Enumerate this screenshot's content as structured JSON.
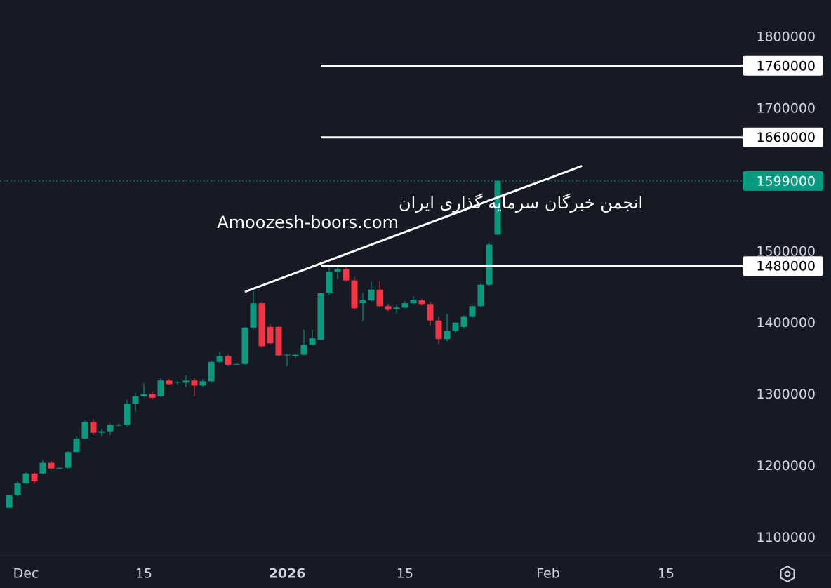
{
  "chart_data": {
    "type": "candlestick",
    "x": [
      "2025-11-29",
      "2025-11-30",
      "2025-12-01",
      "2025-12-02",
      "2025-12-03",
      "2025-12-04",
      "2025-12-05",
      "2025-12-06",
      "2025-12-07",
      "2025-12-08",
      "2025-12-09",
      "2025-12-10",
      "2025-12-11",
      "2025-12-12",
      "2025-12-13",
      "2025-12-14",
      "2025-12-15",
      "2025-12-16",
      "2025-12-17",
      "2025-12-18",
      "2025-12-19",
      "2025-12-20",
      "2025-12-21",
      "2025-12-22",
      "2025-12-23",
      "2025-12-24",
      "2025-12-25",
      "2025-12-26",
      "2025-12-27",
      "2025-12-28",
      "2025-12-29",
      "2025-12-30",
      "2025-12-31",
      "2026-01-01",
      "2026-01-02",
      "2026-01-03",
      "2026-01-04",
      "2026-01-05",
      "2026-01-06",
      "2026-01-07",
      "2026-01-08",
      "2026-01-09",
      "2026-01-10",
      "2026-01-11",
      "2026-01-12",
      "2026-01-13",
      "2026-01-14",
      "2026-01-15",
      "2026-01-16",
      "2026-01-17",
      "2026-01-18",
      "2026-01-19",
      "2026-01-20",
      "2026-01-21",
      "2026-01-22",
      "2026-01-23",
      "2026-01-24",
      "2026-01-25",
      "2026-01-26"
    ],
    "open": [
      1142000,
      1160000,
      1176000,
      1190000,
      1190000,
      1205000,
      1197000,
      1198000,
      1220000,
      1239000,
      1262000,
      1247000,
      1249000,
      1258000,
      1258000,
      1287000,
      1298000,
      1301000,
      1298000,
      1320000,
      1317000,
      1317000,
      1320000,
      1313000,
      1319000,
      1346000,
      1354000,
      1343000,
      1343000,
      1394000,
      1428000,
      1395000,
      1395000,
      1355000,
      1354000,
      1356000,
      1370000,
      1377000,
      1442000,
      1472000,
      1476000,
      1460000,
      1428000,
      1432000,
      1447000,
      1424000,
      1420000,
      1422000,
      1428000,
      1432000,
      1427000,
      1404000,
      1378000,
      1389000,
      1395000,
      1409000,
      1424000,
      1454000,
      1524000
    ],
    "high": [
      1160000,
      1179000,
      1193000,
      1193000,
      1209000,
      1207000,
      1199000,
      1221000,
      1242000,
      1264000,
      1266000,
      1252000,
      1260000,
      1260000,
      1293000,
      1303000,
      1316000,
      1305000,
      1323000,
      1322000,
      1319000,
      1327000,
      1323000,
      1322000,
      1348000,
      1360000,
      1356000,
      1344000,
      1395000,
      1447000,
      1430000,
      1399000,
      1397000,
      1357000,
      1358000,
      1391000,
      1391000,
      1443000,
      1481000,
      1481000,
      1479000,
      1465000,
      1442000,
      1458000,
      1460000,
      1427000,
      1425000,
      1431000,
      1438000,
      1434000,
      1430000,
      1409000,
      1413000,
      1401000,
      1411000,
      1425000,
      1456000,
      1512000,
      1600000
    ],
    "low": [
      1142000,
      1158000,
      1175000,
      1175000,
      1189000,
      1196000,
      1197000,
      1197000,
      1220000,
      1239000,
      1244000,
      1242000,
      1244000,
      1256000,
      1256000,
      1276000,
      1297000,
      1293000,
      1297000,
      1314000,
      1314000,
      1311000,
      1298000,
      1311000,
      1317000,
      1344000,
      1340000,
      1342000,
      1342000,
      1391000,
      1366000,
      1370000,
      1354000,
      1340000,
      1352000,
      1355000,
      1369000,
      1376000,
      1440000,
      1462000,
      1458000,
      1419000,
      1403000,
      1430000,
      1423000,
      1417000,
      1414000,
      1421000,
      1427000,
      1425000,
      1397000,
      1371000,
      1375000,
      1387000,
      1393000,
      1408000,
      1423000,
      1452000,
      1523000
    ],
    "close": [
      1160000,
      1176000,
      1190000,
      1179000,
      1205000,
      1197000,
      1198000,
      1220000,
      1239000,
      1262000,
      1247000,
      1249000,
      1258000,
      1258000,
      1287000,
      1298000,
      1301000,
      1296000,
      1320000,
      1315000,
      1318000,
      1320000,
      1313000,
      1319000,
      1346000,
      1354000,
      1342000,
      1343000,
      1394000,
      1428000,
      1368000,
      1372000,
      1355000,
      1356000,
      1356000,
      1370000,
      1379000,
      1442000,
      1472000,
      1476000,
      1460000,
      1421000,
      1432000,
      1447000,
      1424000,
      1419000,
      1422000,
      1428000,
      1433000,
      1427000,
      1404000,
      1378000,
      1389000,
      1401000,
      1409000,
      1424000,
      1454000,
      1510000,
      1599000
    ],
    "up_color": "#089981",
    "down_color": "#f23645",
    "ylim": [
      1077000,
      1852000
    ],
    "yticks": [
      1100000,
      1200000,
      1300000,
      1400000,
      1500000,
      1600000,
      1700000,
      1800000
    ],
    "xlim": [
      "2025-11-28",
      "2026-02-24"
    ],
    "xticks": [
      {
        "value": "2025-12-01",
        "label": "Dec"
      },
      {
        "value": "2025-12-15",
        "label": "15"
      },
      {
        "value": "2026-01-01",
        "label": "2026"
      },
      {
        "value": "2026-01-15",
        "label": "15"
      },
      {
        "value": "2026-02-01",
        "label": "Feb"
      },
      {
        "value": "2026-02-15",
        "label": "15"
      }
    ],
    "hlines": [
      1760000,
      1660000,
      1480000
    ],
    "hline_start": "2026-01-05",
    "trendline": {
      "x": [
        "2025-12-27",
        "2026-02-05"
      ],
      "y": [
        1444000,
        1620000
      ]
    },
    "annotations": [
      "انجمن خبرگان سرمایه گذاری ایران",
      "Amoozesh-boors.com"
    ]
  }
}
